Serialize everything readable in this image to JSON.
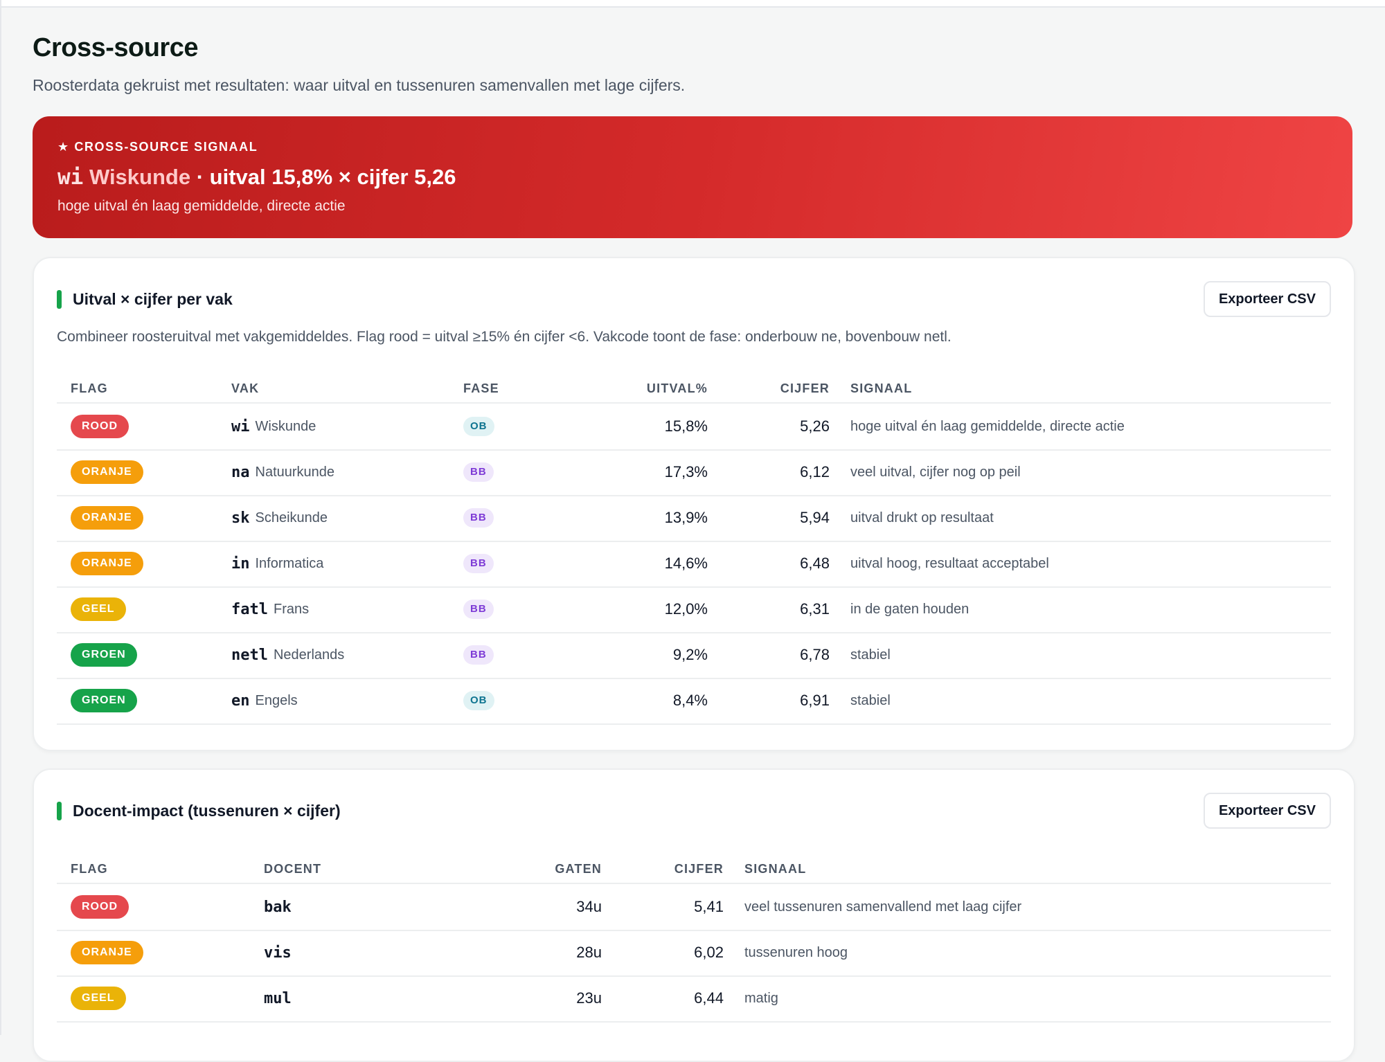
{
  "page": {
    "title": "Cross-source",
    "subtitle": "Roosterdata gekruist met resultaten: waar uitval en tussenuren samenvallen met lage cijfers."
  },
  "hero": {
    "kicker": "★ CROSS-SOURCE SIGNAAL",
    "code": "wi",
    "vak": "Wiskunde",
    "metrics": "· uitval 15,8% × cijfer 5,26",
    "description": "hoge uitval én laag gemiddelde, directe actie"
  },
  "flag_colors": {
    "ROOD": "#e5484d",
    "ORANJE": "#f59e0b",
    "GEEL": "#eab308",
    "GROEN": "#16a34a"
  },
  "vak_section": {
    "heading": "Uitval × cijfer per vak",
    "export_label": "Exporteer CSV",
    "description": "Combineer roosteruitval met vakgemiddeldes. Flag rood = uitval ≥15% én cijfer <6. Vakcode toont de fase: onderbouw ne, bovenbouw netl.",
    "columns": [
      "FLAG",
      "VAK",
      "FASE",
      "UITVAL%",
      "CIJFER",
      "SIGNAAL"
    ],
    "rows": [
      {
        "flag": "ROOD",
        "code": "wi",
        "vak": "Wiskunde",
        "fase": "OB",
        "uitval": "15,8%",
        "cijfer": "5,26",
        "signaal": "hoge uitval én laag gemiddelde, directe actie"
      },
      {
        "flag": "ORANJE",
        "code": "na",
        "vak": "Natuurkunde",
        "fase": "BB",
        "uitval": "17,3%",
        "cijfer": "6,12",
        "signaal": "veel uitval, cijfer nog op peil"
      },
      {
        "flag": "ORANJE",
        "code": "sk",
        "vak": "Scheikunde",
        "fase": "BB",
        "uitval": "13,9%",
        "cijfer": "5,94",
        "signaal": "uitval drukt op resultaat"
      },
      {
        "flag": "ORANJE",
        "code": "in",
        "vak": "Informatica",
        "fase": "BB",
        "uitval": "14,6%",
        "cijfer": "6,48",
        "signaal": "uitval hoog, resultaat acceptabel"
      },
      {
        "flag": "GEEL",
        "code": "fatl",
        "vak": "Frans",
        "fase": "BB",
        "uitval": "12,0%",
        "cijfer": "6,31",
        "signaal": "in de gaten houden"
      },
      {
        "flag": "GROEN",
        "code": "netl",
        "vak": "Nederlands",
        "fase": "BB",
        "uitval": "9,2%",
        "cijfer": "6,78",
        "signaal": "stabiel"
      },
      {
        "flag": "GROEN",
        "code": "en",
        "vak": "Engels",
        "fase": "OB",
        "uitval": "8,4%",
        "cijfer": "6,91",
        "signaal": "stabiel"
      }
    ]
  },
  "docent_section": {
    "heading": "Docent-impact (tussenuren × cijfer)",
    "export_label": "Exporteer CSV",
    "columns": [
      "FLAG",
      "DOCENT",
      "GATEN",
      "CIJFER",
      "SIGNAAL"
    ],
    "rows": [
      {
        "flag": "ROOD",
        "docent": "bak",
        "gaten": "34u",
        "cijfer": "5,41",
        "signaal": "veel tussenuren samenvallend met laag cijfer"
      },
      {
        "flag": "ORANJE",
        "docent": "vis",
        "gaten": "28u",
        "cijfer": "6,02",
        "signaal": "tussenuren hoog"
      },
      {
        "flag": "GEEL",
        "docent": "mul",
        "gaten": "23u",
        "cijfer": "6,44",
        "signaal": "matig"
      }
    ]
  }
}
